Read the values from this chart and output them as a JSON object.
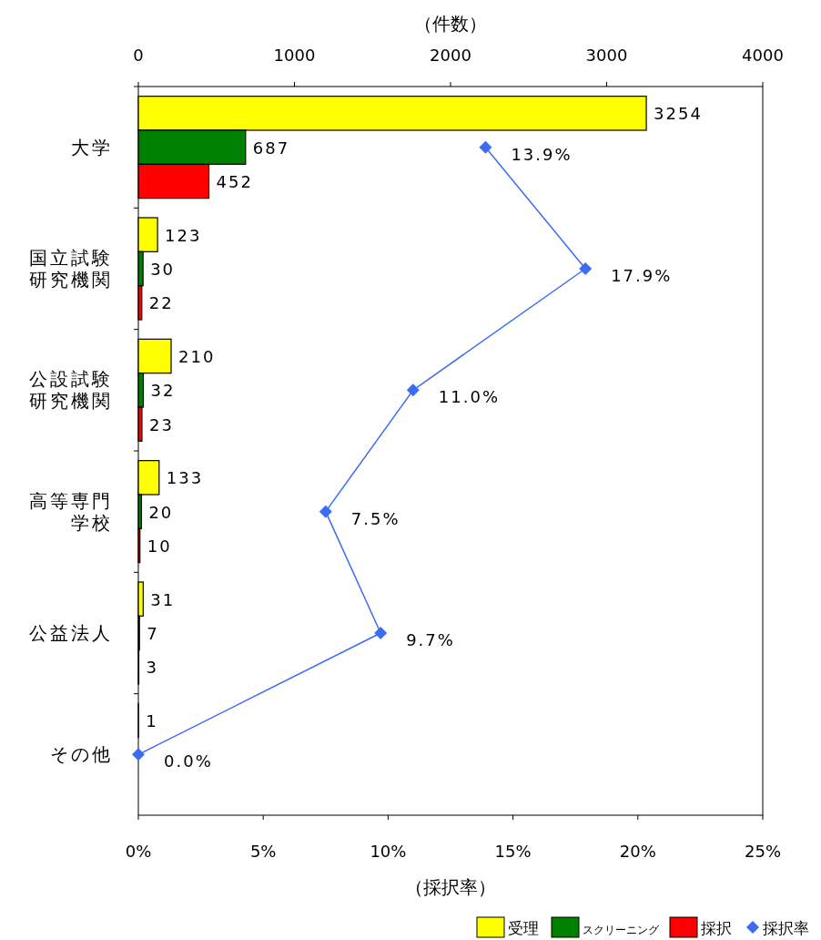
{
  "chart_data": {
    "type": "bar",
    "orientation": "horizontal",
    "categories": [
      "大学",
      "国立試験研究機関",
      "公設試験研究機関",
      "高等専門学校",
      "公益法人",
      "その他"
    ],
    "series": [
      {
        "name": "受理",
        "color": "#ffff00",
        "axis": "x2",
        "values": [
          3254,
          123,
          210,
          133,
          31,
          1
        ],
        "value_labels": [
          "3254",
          "123",
          "210",
          "133",
          "31",
          "1"
        ]
      },
      {
        "name": "スクリーニング",
        "color": "#008000",
        "axis": "x2",
        "values": [
          687,
          30,
          32,
          20,
          7,
          null
        ],
        "value_labels": [
          "687",
          "30",
          "32",
          "20",
          "7",
          null
        ]
      },
      {
        "name": "採択",
        "color": "#ff0000",
        "axis": "x2",
        "values": [
          452,
          22,
          23,
          10,
          3,
          null
        ],
        "value_labels": [
          "452",
          "22",
          "23",
          "10",
          "3",
          null
        ]
      },
      {
        "name": "採択率",
        "type": "line",
        "color": "#3b6cf2",
        "marker": "diamond",
        "line_style": "solid",
        "values": [
          13.9,
          17.9,
          11.0,
          7.5,
          9.7,
          0.0
        ],
        "value_labels": [
          "13.9%",
          "17.9%",
          "11.0%",
          "7.5%",
          "9.7%",
          "0.0%"
        ]
      }
    ],
    "x2label": "（件数）",
    "x2lim": [
      0,
      4000
    ],
    "x2ticks": [
      0,
      1000,
      2000,
      3000,
      4000
    ],
    "xlabel": "（採択率）",
    "xlim": [
      0,
      25
    ],
    "xticks": [
      {
        "value": 0,
        "label": "0%"
      },
      {
        "value": 5,
        "label": "5%"
      },
      {
        "value": 10,
        "label": "10%"
      },
      {
        "value": 15,
        "label": "15%"
      },
      {
        "value": 20,
        "label": "20%"
      },
      {
        "value": 25,
        "label": "25%"
      }
    ],
    "grid": false,
    "legend": "bottom right"
  }
}
